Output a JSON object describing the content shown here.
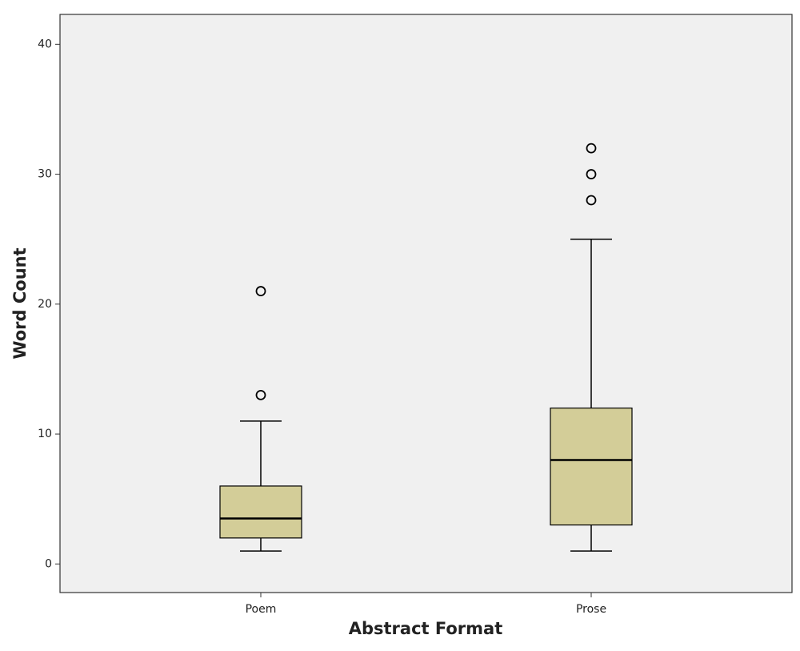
{
  "chart_data": {
    "type": "box",
    "x_label": "Abstract Format",
    "y_label": "Word Count",
    "categories": [
      "Poem",
      "Prose"
    ],
    "boxes": [
      {
        "min": 1,
        "q1": 2,
        "median": 3.5,
        "q3": 6,
        "max": 11,
        "outliers": [
          13,
          21
        ]
      },
      {
        "min": 1,
        "q1": 3,
        "median": 8,
        "q3": 12,
        "max": 25,
        "outliers": [
          28,
          30,
          32
        ]
      }
    ],
    "color": "#d3cd98",
    "ylim": [
      -2.2,
      42.3
    ],
    "yticks": [
      0,
      10,
      20,
      30,
      40
    ]
  }
}
